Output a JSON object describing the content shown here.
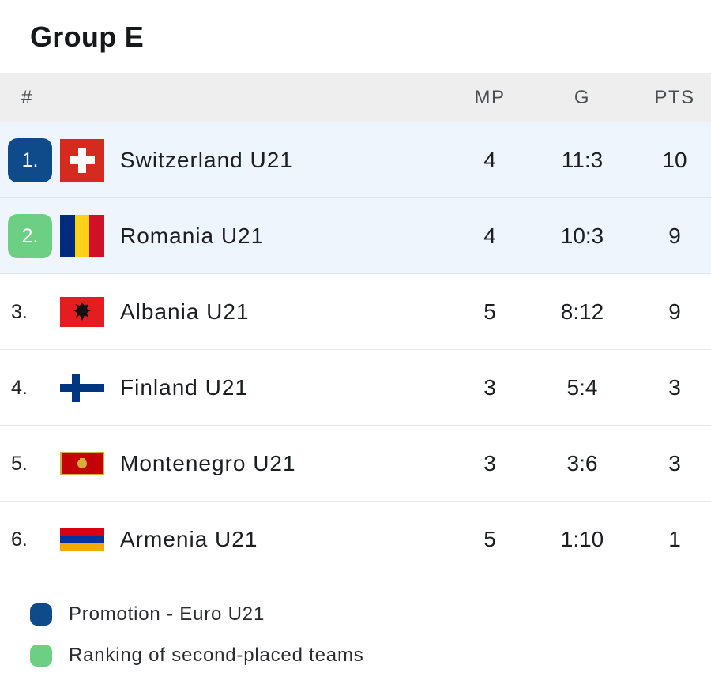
{
  "title": "Group E",
  "header": {
    "rank": "#",
    "mp": "MP",
    "goals": "G",
    "pts": "PTS"
  },
  "rows": [
    {
      "rank": "1.",
      "team": "Switzerland U21",
      "mp": "4",
      "goals": "11:3",
      "pts": "10",
      "status": "promotion",
      "flag": "switzerland-flag-icon"
    },
    {
      "rank": "2.",
      "team": "Romania U21",
      "mp": "4",
      "goals": "10:3",
      "pts": "9",
      "status": "second-placed",
      "flag": "romania-flag-icon"
    },
    {
      "rank": "3.",
      "team": "Albania U21",
      "mp": "5",
      "goals": "8:12",
      "pts": "9",
      "status": "none",
      "flag": "albania-flag-icon"
    },
    {
      "rank": "4.",
      "team": "Finland U21",
      "mp": "3",
      "goals": "5:4",
      "pts": "3",
      "status": "none",
      "flag": "finland-flag-icon"
    },
    {
      "rank": "5.",
      "team": "Montenegro U21",
      "mp": "3",
      "goals": "3:6",
      "pts": "3",
      "status": "none",
      "flag": "montenegro-flag-icon"
    },
    {
      "rank": "6.",
      "team": "Armenia U21",
      "mp": "5",
      "goals": "1:10",
      "pts": "1",
      "status": "none",
      "flag": "armenia-flag-icon"
    }
  ],
  "legend": [
    {
      "label": "Promotion - Euro U21",
      "color": "#0f4a8a"
    },
    {
      "label": "Ranking of second-placed teams",
      "color": "#6ccf84"
    }
  ],
  "colors": {
    "promotion": "#0f4a8a",
    "second_placed": "#6ccf84",
    "highlight_row": "#eef5fd",
    "header_bg": "#eeeeee"
  }
}
